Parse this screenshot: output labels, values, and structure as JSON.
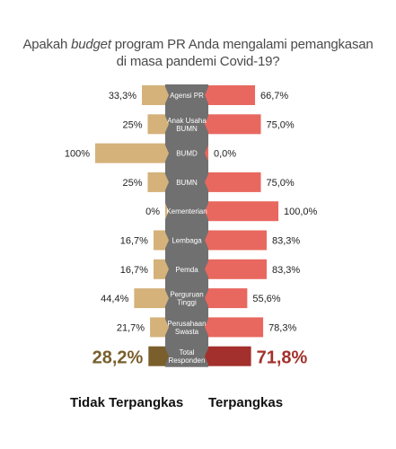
{
  "title": {
    "line1_prefix": "Apakah ",
    "line1_emph": "budget",
    "line1_suffix": " program PR Anda mengalami pemangkasan",
    "line2": "di masa pandemi Covid-19?"
  },
  "colors": {
    "left_bar": "#d4b27a",
    "right_bar": "#e8685f",
    "center_col": "#707070",
    "total_left": "#7a5f2c",
    "total_right": "#a3302c"
  },
  "chart_data": {
    "type": "bar",
    "orientation": "horizontal-diverging",
    "categories": [
      [
        "Agensi PR"
      ],
      [
        "Anak Usaha",
        "BUMN"
      ],
      [
        "BUMD"
      ],
      [
        "BUMN"
      ],
      [
        "Kementerian"
      ],
      [
        "Lembaga"
      ],
      [
        "Pemda"
      ],
      [
        "Perguruan",
        "Tinggi"
      ],
      [
        "Perusahaan",
        "Swasta"
      ]
    ],
    "series": [
      {
        "name": "Tidak Terpangkas",
        "values": [
          33.3,
          25,
          100,
          25,
          0,
          16.7,
          16.7,
          44.4,
          21.7
        ],
        "labels": [
          "33,3%",
          "25%",
          "100%",
          "25%",
          "0%",
          "16,7%",
          "16,7%",
          "44,4%",
          "21,7%"
        ]
      },
      {
        "name": "Terpangkas",
        "values": [
          66.7,
          75,
          0,
          75,
          100,
          83.3,
          83.3,
          55.6,
          78.3
        ],
        "labels": [
          "66,7%",
          "75,0%",
          "0,0%",
          "75,0%",
          "100,0%",
          "83,3%",
          "83,3%",
          "55,6%",
          "78,3%"
        ]
      }
    ],
    "total": {
      "label": [
        "Total",
        "Responden"
      ],
      "left_value": 28.2,
      "left_label": "28,2%",
      "right_value": 71.8,
      "right_label": "71,8%"
    }
  },
  "legend": {
    "left": "Tidak Terpangkas",
    "right": "Terpangkas"
  }
}
